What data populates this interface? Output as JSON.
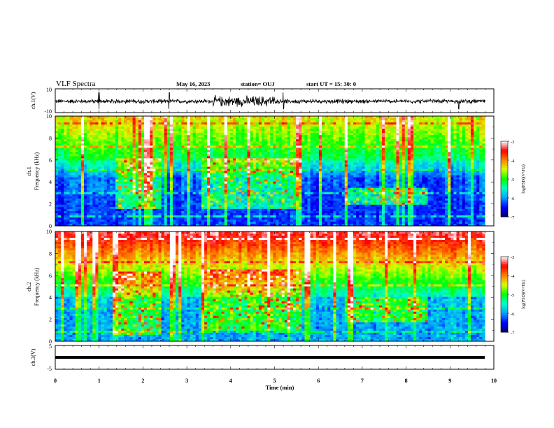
{
  "header": {
    "title": "VLF Spectra",
    "date": "May 16, 2023",
    "station": "station= OUJ",
    "start": "start  UT =   15: 30: 0"
  },
  "colors": {
    "background": "#ffffff",
    "axis": "#000000",
    "colormap": [
      "#00006a",
      "#0000ff",
      "#00a0ff",
      "#00ffc8",
      "#00ff00",
      "#d8ff00",
      "#ff8000",
      "#ff0000",
      "#ffffff"
    ]
  },
  "chart_data": [
    {
      "id": "ch1_waveform",
      "type": "line",
      "ylabel": "ch.1(V)",
      "ylim": [
        -10,
        10
      ],
      "yticks": [
        "10",
        "-10"
      ],
      "baseline": -0.5,
      "noise_amplitude": 1.5,
      "noise_bursts": [
        [
          3.6,
          5.0
        ]
      ],
      "spikes": [
        1.0,
        2.6,
        5.2,
        9.2
      ]
    },
    {
      "id": "ch1_spectrogram",
      "type": "heatmap",
      "ylabel": "ch.1\nFrequency  (kHz)",
      "xlim": [
        0,
        10
      ],
      "ylim": [
        0,
        10
      ],
      "yticks": [
        "0",
        "2",
        "4",
        "6",
        "8",
        "10"
      ],
      "colorbar": {
        "label": "log(PSD)(V²/Hz)",
        "ticks": [
          "-3",
          "-4",
          "-5",
          "-6",
          "-7"
        ],
        "range": [
          -7,
          -3
        ]
      },
      "emission_segments": [
        {
          "t": [
            1.4,
            2.4
          ],
          "f": [
            1.6,
            6.2
          ]
        },
        {
          "t": [
            3.3,
            5.6
          ],
          "f": [
            1.5,
            6.2
          ]
        },
        {
          "t": [
            6.6,
            8.5
          ],
          "f": [
            2.0,
            3.5
          ]
        }
      ],
      "sferic_level": "medium"
    },
    {
      "id": "ch2_spectrogram",
      "type": "heatmap",
      "ylabel": "ch.2\nFrequency  (kHz)",
      "xlim": [
        0,
        10
      ],
      "ylim": [
        0,
        10
      ],
      "yticks": [
        "0",
        "2",
        "4",
        "6",
        "8",
        "10"
      ],
      "colorbar": {
        "label": "log(PSD)(V²/Hz)",
        "ticks": [
          "-3",
          "-4",
          "-5",
          "-6",
          "-7"
        ],
        "range": [
          -7,
          -3
        ]
      },
      "emission_segments": [
        {
          "t": [
            1.3,
            2.4
          ],
          "f": [
            0.5,
            6.3
          ]
        },
        {
          "t": [
            3.3,
            5.6
          ],
          "f": [
            1.0,
            6.5
          ]
        },
        {
          "t": [
            6.6,
            8.5
          ],
          "f": [
            1.8,
            4.0
          ]
        }
      ],
      "sferic_level": "high"
    },
    {
      "id": "ch3_waveform",
      "type": "line",
      "ylabel": "ch.3(V)",
      "xlabel": "Time  (min)",
      "xlim": [
        0,
        10
      ],
      "ylim": [
        -5,
        5
      ],
      "yticks": [
        "5",
        "-5"
      ],
      "xticks": [
        "0",
        "1",
        "2",
        "3",
        "4",
        "5",
        "6",
        "7",
        "8",
        "9",
        "10"
      ],
      "baseline": 0,
      "noise_amplitude": 0
    }
  ]
}
